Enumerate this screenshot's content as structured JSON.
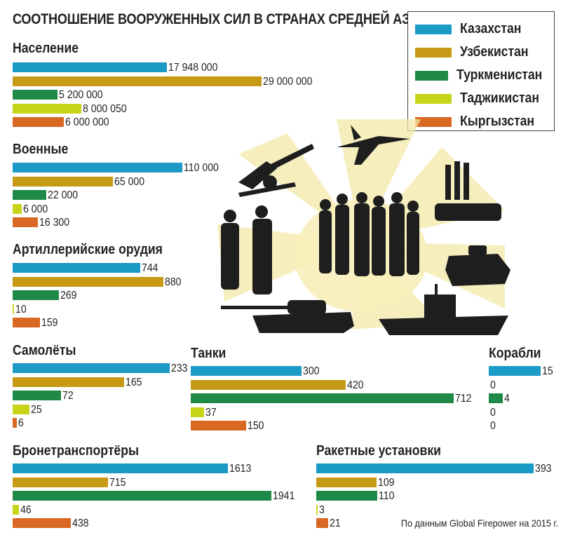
{
  "title": "СООТНОШЕНИЕ ВООРУЖЕННЫХ СИЛ В СТРАНАХ СРЕДНЕЙ АЗИИ",
  "source": "По данным Global Firepower на 2015 г.",
  "colors": {
    "kazakhstan": "#1b9ac6",
    "uzbekistan": "#c79a16",
    "turkmenistan": "#1f8a47",
    "tajikistan": "#c8d41a",
    "kyrgyzstan": "#d96823",
    "silhouette": "#1e1e1e",
    "glow": "#f4e8a8"
  },
  "legend": [
    {
      "label": "Казахстан",
      "color": "#1b9ac6"
    },
    {
      "label": "Узбекистан",
      "color": "#c79a16"
    },
    {
      "label": "Туркменистан",
      "color": "#1f8a47"
    },
    {
      "label": "Таджикистан",
      "color": "#c8d41a"
    },
    {
      "label": "Кыргызстан",
      "color": "#d96823"
    }
  ],
  "illustration_icons": [
    "howitzer-icon",
    "fighter-jet-icon",
    "missile-launcher-icon",
    "soldiers-icon",
    "civilians-icon",
    "armored-vehicle-icon",
    "tank-icon",
    "warship-icon"
  ],
  "chart_data": [
    {
      "type": "bar",
      "title": "Население",
      "categories": [
        "Казахстан",
        "Узбекистан",
        "Туркменистан",
        "Таджикистан",
        "Кыргызстан"
      ],
      "values": [
        17948000,
        29000000,
        5200000,
        8000050,
        6000000
      ],
      "labels": [
        "17 948 000",
        "29 000 000",
        "5 200 000",
        "8 000 050",
        "6 000 000"
      ]
    },
    {
      "type": "bar",
      "title": "Военные",
      "categories": [
        "Казахстан",
        "Узбекистан",
        "Туркменистан",
        "Таджикистан",
        "Кыргызстан"
      ],
      "values": [
        110000,
        65000,
        22000,
        6000,
        16300
      ],
      "labels": [
        "110 000",
        "65 000",
        "22 000",
        "6 000",
        "16 300"
      ]
    },
    {
      "type": "bar",
      "title": "Артиллерийские орудия",
      "categories": [
        "Казахстан",
        "Узбекистан",
        "Туркменистан",
        "Таджикистан",
        "Кыргызстан"
      ],
      "values": [
        744,
        880,
        269,
        10,
        159
      ],
      "labels": [
        "744",
        "880",
        "269",
        "10",
        "159"
      ]
    },
    {
      "type": "bar",
      "title": "Самолёты",
      "categories": [
        "Казахстан",
        "Узбекистан",
        "Туркменистан",
        "Таджикистан",
        "Кыргызстан"
      ],
      "values": [
        233,
        165,
        72,
        25,
        6
      ],
      "labels": [
        "233",
        "165",
        "72",
        "25",
        "6"
      ]
    },
    {
      "type": "bar",
      "title": "Танки",
      "categories": [
        "Казахстан",
        "Узбекистан",
        "Туркменистан",
        "Таджикистан",
        "Кыргызстан"
      ],
      "values": [
        300,
        420,
        712,
        37,
        150
      ],
      "labels": [
        "300",
        "420",
        "712",
        "37",
        "150"
      ]
    },
    {
      "type": "bar",
      "title": "Корабли",
      "categories": [
        "Казахстан",
        "Узбекистан",
        "Туркменистан",
        "Таджикистан",
        "Кыргызстан"
      ],
      "values": [
        15,
        0,
        4,
        0,
        0
      ],
      "labels": [
        "15",
        "0",
        "4",
        "0",
        "0"
      ]
    },
    {
      "type": "bar",
      "title": "Бронетранспортёры",
      "categories": [
        "Казахстан",
        "Узбекистан",
        "Туркменистан",
        "Таджикистан",
        "Кыргызстан"
      ],
      "values": [
        1613,
        715,
        1941,
        46,
        438
      ],
      "labels": [
        "1613",
        "715",
        "1941",
        "46",
        "438"
      ]
    },
    {
      "type": "bar",
      "title": "Ракетные установки",
      "categories": [
        "Казахстан",
        "Узбекистан",
        "Туркменистан",
        "Таджикистан",
        "Кыргызстан"
      ],
      "values": [
        393,
        109,
        110,
        3,
        21
      ],
      "labels": [
        "393",
        "109",
        "110",
        "3",
        "21"
      ]
    }
  ]
}
